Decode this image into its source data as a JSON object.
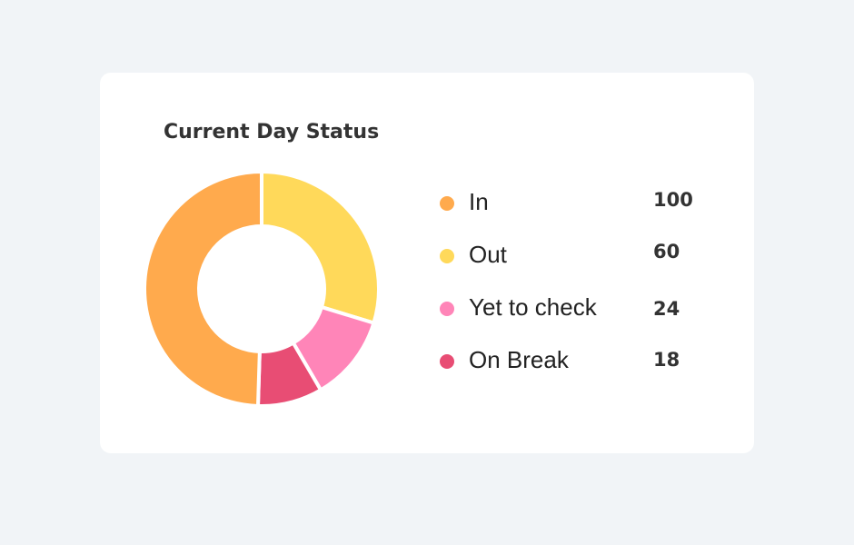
{
  "card": {
    "title": "Current Day Status"
  },
  "chart_data": {
    "type": "pie",
    "variant": "donut",
    "title": "Current Day Status",
    "categories": [
      "In",
      "Out",
      "Yet to check",
      "On Break"
    ],
    "values": [
      100,
      60,
      24,
      18
    ],
    "colors": [
      "#ffaa4d",
      "#ffd95a",
      "#ff85b8",
      "#e84d74"
    ],
    "legend_position": "right"
  },
  "legend": {
    "items": [
      {
        "label": "In",
        "value": "100",
        "color": "#ffaa4d"
      },
      {
        "label": "Out",
        "value": "60",
        "color": "#ffd95a"
      },
      {
        "label": "Yet to check",
        "value": "24",
        "color": "#ff85b8"
      },
      {
        "label": "On Break",
        "value": "18",
        "color": "#e84d74"
      }
    ]
  }
}
